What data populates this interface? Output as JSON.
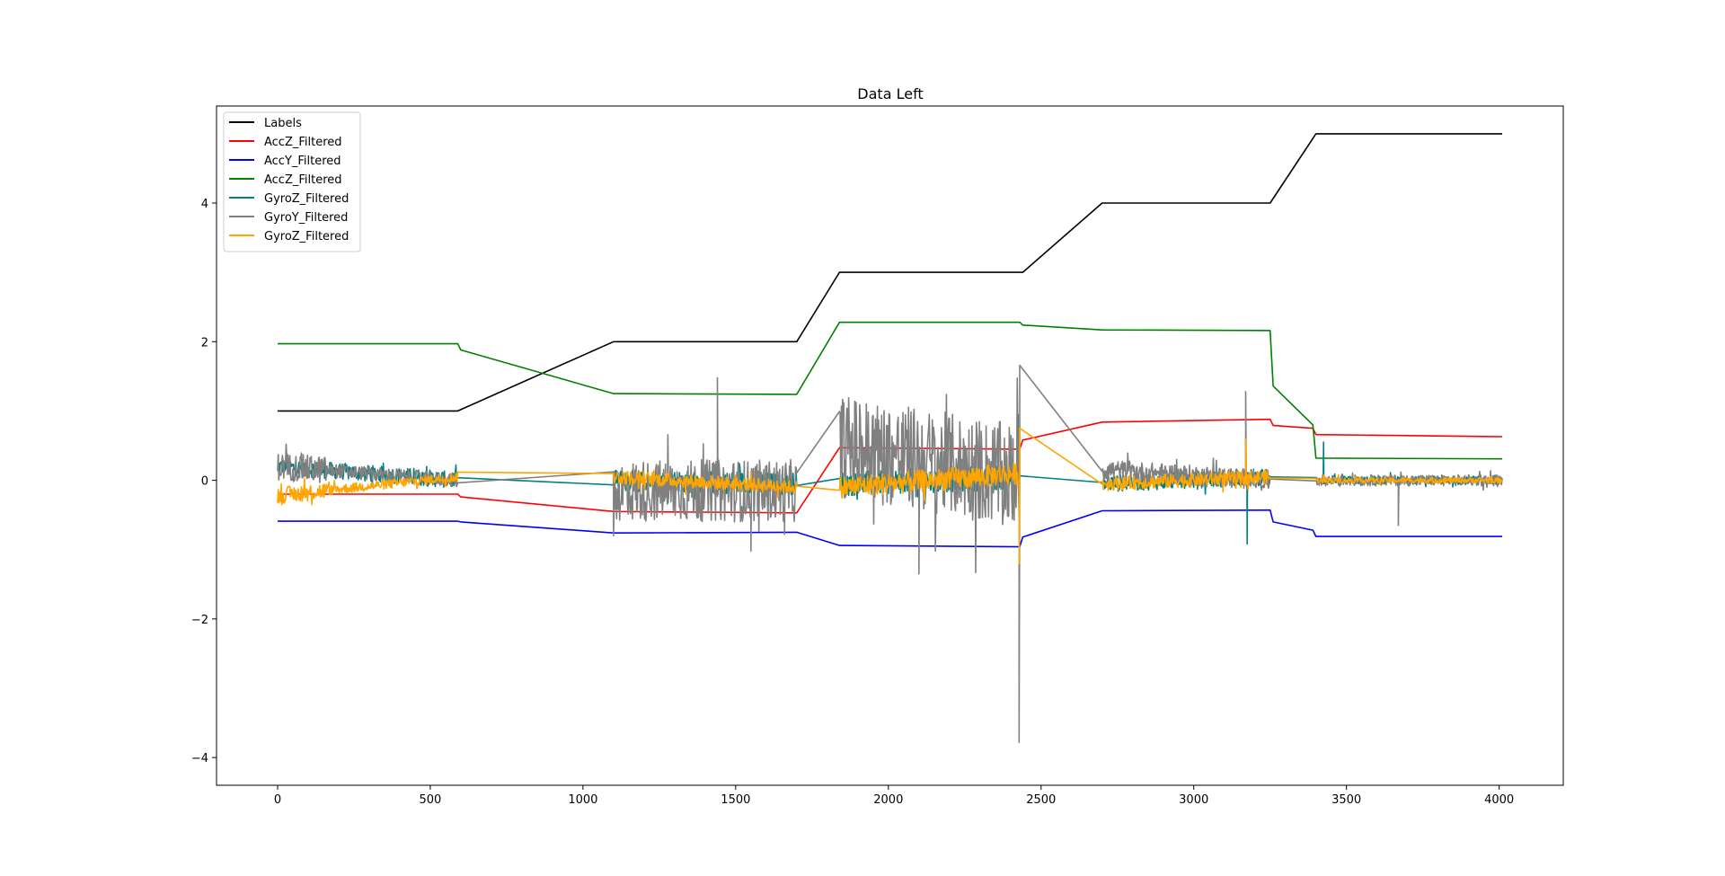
{
  "chart_data": {
    "type": "line",
    "title": "Data Left",
    "xlabel": "",
    "ylabel": "",
    "xlim": [
      -200,
      4210
    ],
    "ylim": [
      -4.4,
      5.4
    ],
    "xticks": [
      0,
      500,
      1000,
      1500,
      2000,
      2500,
      3000,
      3500,
      4000
    ],
    "xtick_labels": [
      "0",
      "500",
      "1000",
      "1500",
      "2000",
      "2500",
      "3000",
      "3500",
      "4000"
    ],
    "yticks": [
      -4,
      -2,
      0,
      2,
      4
    ],
    "ytick_labels": [
      "−4",
      "−2",
      "0",
      "2",
      "4"
    ],
    "grid": false,
    "legend_position": "top-left",
    "series": [
      {
        "name": "Labels",
        "color": "#000000",
        "x": [
          0,
          590,
          1100,
          1700,
          1840,
          2440,
          2700,
          3250,
          3400,
          4010
        ],
        "y": [
          1,
          1,
          2,
          2,
          3,
          3,
          4,
          4,
          5,
          5
        ]
      },
      {
        "name": "AccZ_Filtered",
        "color": "#ff0000",
        "x": [
          0,
          590,
          600,
          1100,
          1700,
          1840,
          2430,
          2440,
          2700,
          3250,
          3260,
          3390,
          3400,
          4010
        ],
        "y": [
          -0.2,
          -0.2,
          -0.24,
          -0.45,
          -0.47,
          0.47,
          0.45,
          0.58,
          0.84,
          0.88,
          0.79,
          0.75,
          0.66,
          0.63
        ],
        "noise": 0
      },
      {
        "name": "AccY_Filtered",
        "color": "#0000ff",
        "x": [
          0,
          590,
          600,
          1100,
          1700,
          1840,
          2430,
          2440,
          2700,
          3250,
          3260,
          3390,
          3400,
          4010
        ],
        "y": [
          -0.59,
          -0.59,
          -0.6,
          -0.76,
          -0.75,
          -0.94,
          -0.96,
          -0.82,
          -0.44,
          -0.43,
          -0.6,
          -0.72,
          -0.81,
          -0.81
        ],
        "noise": 0
      },
      {
        "name": "AccZ_Filtered",
        "color": "#008000",
        "x": [
          0,
          590,
          600,
          1100,
          1700,
          1840,
          2430,
          2440,
          2700,
          3250,
          3260,
          3390,
          3400,
          4010
        ],
        "y": [
          1.97,
          1.97,
          1.88,
          1.25,
          1.24,
          2.28,
          2.28,
          2.24,
          2.17,
          2.16,
          1.36,
          0.8,
          0.32,
          0.31
        ],
        "noise": 0
      },
      {
        "name": "GyroZ_Filtered",
        "color": "#008080",
        "x": [
          0,
          590,
          600,
          1100,
          1700,
          1840,
          2430,
          2440,
          2700,
          3250,
          3260,
          3390,
          3400,
          4010
        ],
        "y": [
          0.2,
          0.0,
          0.0,
          0.0,
          -0.05,
          -0.05,
          0.05,
          0.05,
          -0.05,
          0.05,
          0.05,
          -0.05,
          0.0,
          0.0
        ],
        "segments": [
          [
            0,
            590,
            0.12
          ],
          [
            1100,
            1700,
            0.16
          ],
          [
            1840,
            2430,
            0.18
          ],
          [
            2700,
            3250,
            0.12
          ],
          [
            3400,
            4010,
            0.06
          ]
        ],
        "spikes": [
          [
            3175,
            -0.92
          ],
          [
            3425,
            0.55
          ],
          [
            2425,
            0.95
          ]
        ]
      },
      {
        "name": "GyroY_Filtered",
        "color": "#808080",
        "x": [
          0,
          590,
          600,
          1100,
          1700,
          1840,
          2430,
          2440,
          2700,
          3250,
          3260,
          3390,
          3400,
          4010
        ],
        "y": [
          0.2,
          0.0,
          0.0,
          -0.15,
          -0.15,
          0.5,
          0.05,
          -0.15,
          0.15,
          0.0,
          -0.15,
          -0.05,
          0.0,
          0.0
        ],
        "segments": [
          [
            0,
            160,
            0.2
          ],
          [
            160,
            590,
            0.1
          ],
          [
            1100,
            1700,
            0.45
          ],
          [
            1840,
            2430,
            0.75
          ],
          [
            2700,
            3250,
            0.15
          ],
          [
            3400,
            4010,
            0.08
          ]
        ],
        "spikes": [
          [
            1440,
            1.48
          ],
          [
            1550,
            -1.02
          ],
          [
            1100,
            -0.8
          ],
          [
            2100,
            -1.35
          ],
          [
            2428,
            -3.78
          ],
          [
            2430,
            1.66
          ],
          [
            3170,
            1.28
          ],
          [
            3670,
            -0.65
          ],
          [
            1660,
            -0.78
          ]
        ]
      },
      {
        "name": "GyroZ_Filtered",
        "color": "#ffa500",
        "x": [
          0,
          590,
          600,
          1100,
          1700,
          1840,
          2430,
          2440,
          2700,
          3250,
          3260,
          3390,
          3400,
          4010
        ],
        "y": [
          -0.22,
          0.05,
          0.06,
          0.05,
          -0.1,
          -0.1,
          0.1,
          0.08,
          -0.05,
          0.05,
          0.02,
          0.02,
          0.0,
          0.0
        ],
        "segments": [
          [
            0,
            160,
            0.12
          ],
          [
            160,
            590,
            0.07
          ],
          [
            1100,
            1700,
            0.1
          ],
          [
            1840,
            2430,
            0.16
          ],
          [
            2700,
            3250,
            0.1
          ],
          [
            3400,
            4010,
            0.04
          ]
        ],
        "spikes": [
          [
            2428,
            -1.2
          ],
          [
            3170,
            0.6
          ],
          [
            2430,
            0.75
          ]
        ]
      }
    ]
  }
}
